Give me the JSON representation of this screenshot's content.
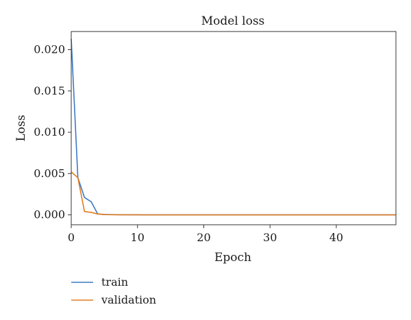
{
  "chart_data": {
    "type": "line",
    "title": "Model loss",
    "xlabel": "Epoch",
    "ylabel": "Loss",
    "xlim": [
      0,
      49
    ],
    "ylim": [
      -0.0012,
      0.0222
    ],
    "x_ticks": [
      0,
      10,
      20,
      30,
      40
    ],
    "x_tick_labels": [
      "0",
      "10",
      "20",
      "30",
      "40"
    ],
    "y_ticks": [
      0.0,
      0.005,
      0.01,
      0.015,
      0.02
    ],
    "y_tick_labels": [
      "0.000",
      "0.005",
      "0.010",
      "0.015",
      "0.020"
    ],
    "grid": false,
    "legend_position": "below",
    "series": [
      {
        "name": "train",
        "color": "#3b78c4",
        "x": [
          0,
          1,
          2,
          3,
          4,
          5,
          6,
          7,
          8,
          9,
          10,
          11,
          12,
          13,
          14,
          15,
          16,
          17,
          18,
          19,
          20,
          21,
          22,
          23,
          24,
          25,
          26,
          27,
          28,
          29,
          30,
          31,
          32,
          33,
          34,
          35,
          36,
          37,
          38,
          39,
          40,
          41,
          42,
          43,
          44,
          45,
          46,
          47,
          48,
          49
        ],
        "values": [
          0.0213,
          0.0045,
          0.0021,
          0.0016,
          0.0001,
          5e-05,
          3e-05,
          2e-05,
          1e-05,
          1e-05,
          1e-05,
          0,
          0,
          0,
          0,
          0,
          0,
          0,
          0,
          0,
          0,
          0,
          0,
          0,
          0,
          0,
          0,
          0,
          0,
          0,
          0,
          0,
          0,
          0,
          0,
          0,
          0,
          0,
          0,
          0,
          0,
          0,
          0,
          0,
          0,
          0,
          0,
          0,
          0,
          0
        ]
      },
      {
        "name": "validation",
        "color": "#e07b21",
        "x": [
          0,
          1,
          2,
          3,
          4,
          5,
          6,
          7,
          8,
          9,
          10,
          11,
          12,
          13,
          14,
          15,
          16,
          17,
          18,
          19,
          20,
          21,
          22,
          23,
          24,
          25,
          26,
          27,
          28,
          29,
          30,
          31,
          32,
          33,
          34,
          35,
          36,
          37,
          38,
          39,
          40,
          41,
          42,
          43,
          44,
          45,
          46,
          47,
          48,
          49
        ],
        "values": [
          0.0052,
          0.0045,
          0.0004,
          0.0003,
          0.0001,
          3e-05,
          2e-05,
          1e-05,
          1e-05,
          1e-05,
          0,
          0,
          0,
          0,
          0,
          0,
          0,
          0,
          0,
          0,
          0,
          0,
          0,
          0,
          0,
          0,
          0,
          0,
          0,
          0,
          0,
          0,
          0,
          0,
          0,
          0,
          0,
          0,
          0,
          0,
          0,
          0,
          0,
          0,
          0,
          0,
          0,
          0,
          0,
          0
        ]
      }
    ]
  }
}
